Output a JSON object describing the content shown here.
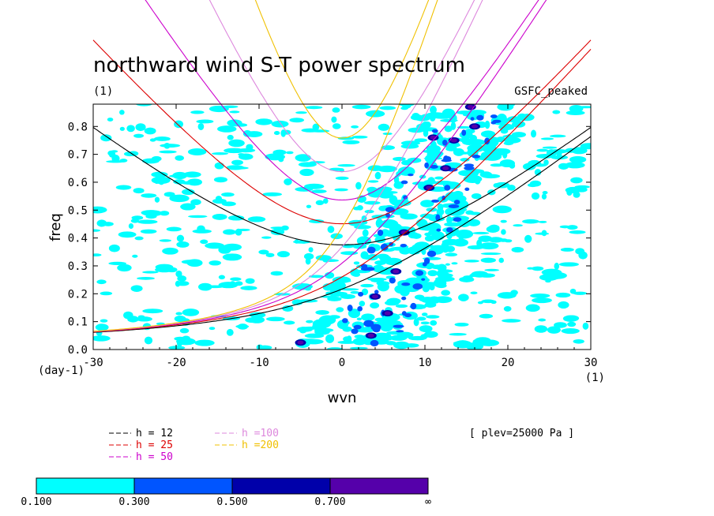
{
  "chart_data": {
    "type": "heatmap",
    "title": "northward wind S-T power spectrum",
    "subtitle": "(1)",
    "dataset_label": "GSFC_peaked",
    "xlabel": "wvn",
    "ylabel": "freq",
    "x_units": "(1)",
    "y_units": "(day-1)",
    "xlim": [
      -30,
      30
    ],
    "ylim": [
      0,
      0.88
    ],
    "x_ticks": [
      "-30",
      "-20",
      "-10",
      "0",
      "10",
      "20",
      "30"
    ],
    "y_ticks": [
      "0.0",
      "0.1",
      "0.2",
      "0.3",
      "0.4",
      "0.5",
      "0.6",
      "0.7",
      "0.8"
    ],
    "annotation": "[ plev=25000 Pa ]",
    "dispersion_curves": [
      {
        "label": "h = 12",
        "color": "#000000",
        "h": 12
      },
      {
        "label": "h = 25",
        "color": "#dd0000",
        "h": 25
      },
      {
        "label": "h = 50",
        "color": "#cc00cc",
        "h": 50
      },
      {
        "label": "h =100",
        "color": "#dd88dd",
        "h": 100
      },
      {
        "label": "h =200",
        "color": "#f0c000",
        "h": 200
      }
    ],
    "colorbar": {
      "levels": [
        "0.100",
        "0.300",
        "0.500",
        "0.700",
        "∞"
      ],
      "colors": [
        "#00ffff",
        "#0055ff",
        "#0000aa",
        "#5500aa"
      ]
    }
  }
}
